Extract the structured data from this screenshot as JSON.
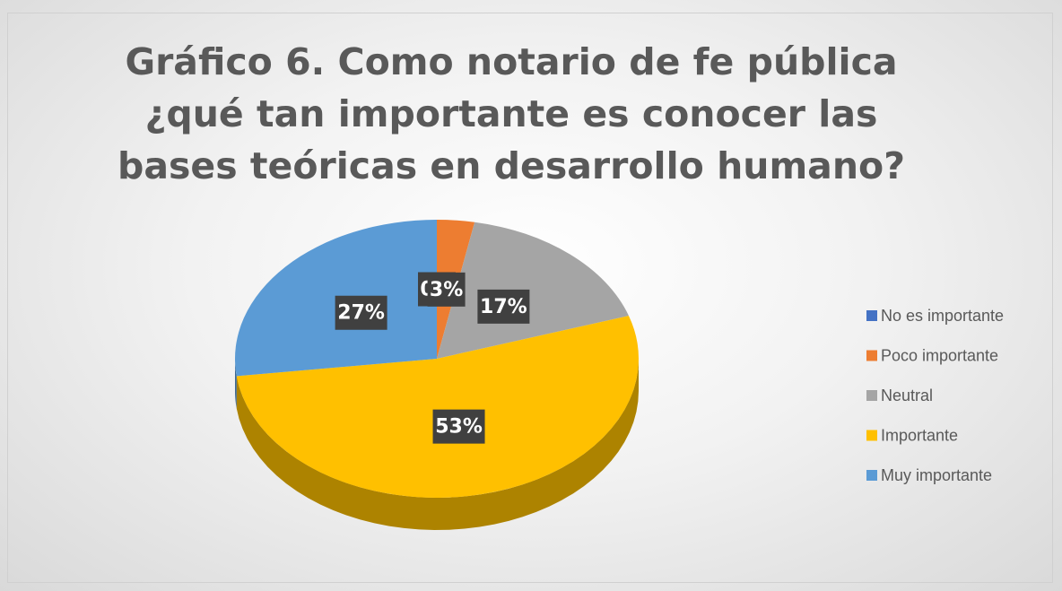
{
  "chart_data": {
    "type": "pie",
    "title": "Gráfico 6. Como notario de fe pública ¿qué tan importante es conocer las bases teóricas en desarrollo humano?",
    "categories": [
      "No es importante",
      "Poco importante",
      "Neutral",
      "Importante",
      "Muy importante"
    ],
    "values": [
      0,
      3,
      17,
      53,
      27
    ],
    "value_labels": [
      "0%",
      "3%",
      "17%",
      "53%",
      "27%"
    ],
    "colors": [
      "#4472c4",
      "#ed7d31",
      "#a5a5a5",
      "#ffc000",
      "#5b9bd5"
    ],
    "legend": "right"
  }
}
